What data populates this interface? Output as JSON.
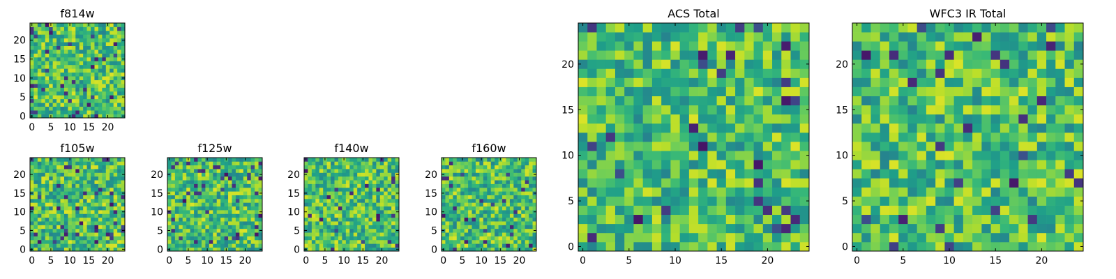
{
  "colormap": "viridis",
  "chart_data": [
    {
      "type": "heatmap",
      "title": "f814w",
      "grid_size": 25,
      "xlim": [
        -0.5,
        24.5
      ],
      "ylim": [
        -0.5,
        24.5
      ],
      "xticks": [
        0,
        5,
        10,
        15,
        20
      ],
      "yticks": [
        0,
        5,
        10,
        15,
        20
      ],
      "values_note_seed": 11
    },
    {
      "type": "heatmap",
      "title": "f105w",
      "grid_size": 25,
      "xlim": [
        -0.5,
        24.5
      ],
      "ylim": [
        -0.5,
        24.5
      ],
      "xticks": [
        0,
        5,
        10,
        15,
        20
      ],
      "yticks": [
        0,
        5,
        10,
        15,
        20
      ],
      "values_note_seed": 22
    },
    {
      "type": "heatmap",
      "title": "f125w",
      "grid_size": 25,
      "xlim": [
        -0.5,
        24.5
      ],
      "ylim": [
        -0.5,
        24.5
      ],
      "xticks": [
        0,
        5,
        10,
        15,
        20
      ],
      "yticks": [
        0,
        5,
        10,
        15,
        20
      ],
      "values_note_seed": 33
    },
    {
      "type": "heatmap",
      "title": "f140w",
      "grid_size": 25,
      "xlim": [
        -0.5,
        24.5
      ],
      "ylim": [
        -0.5,
        24.5
      ],
      "xticks": [
        0,
        5,
        10,
        15,
        20
      ],
      "yticks": [
        0,
        5,
        10,
        15,
        20
      ],
      "values_note_seed": 44
    },
    {
      "type": "heatmap",
      "title": "f160w",
      "grid_size": 25,
      "xlim": [
        -0.5,
        24.5
      ],
      "ylim": [
        -0.5,
        24.5
      ],
      "xticks": [
        0,
        5,
        10,
        15,
        20
      ],
      "yticks": [
        0,
        5,
        10,
        15,
        20
      ],
      "values_note_seed": 55
    },
    {
      "type": "heatmap",
      "title": "ACS Total",
      "grid_size": 25,
      "xlim": [
        -0.5,
        24.5
      ],
      "ylim": [
        -0.5,
        24.5
      ],
      "xticks": [
        0,
        5,
        10,
        15,
        20
      ],
      "yticks": [
        0,
        5,
        10,
        15,
        20
      ],
      "values_note_seed": 66
    },
    {
      "type": "heatmap",
      "title": "WFC3 IR Total",
      "grid_size": 25,
      "xlim": [
        -0.5,
        24.5
      ],
      "ylim": [
        -0.5,
        24.5
      ],
      "xticks": [
        0,
        5,
        10,
        15,
        20
      ],
      "yticks": [
        0,
        5,
        10,
        15,
        20
      ],
      "values_note_seed": 77
    }
  ]
}
